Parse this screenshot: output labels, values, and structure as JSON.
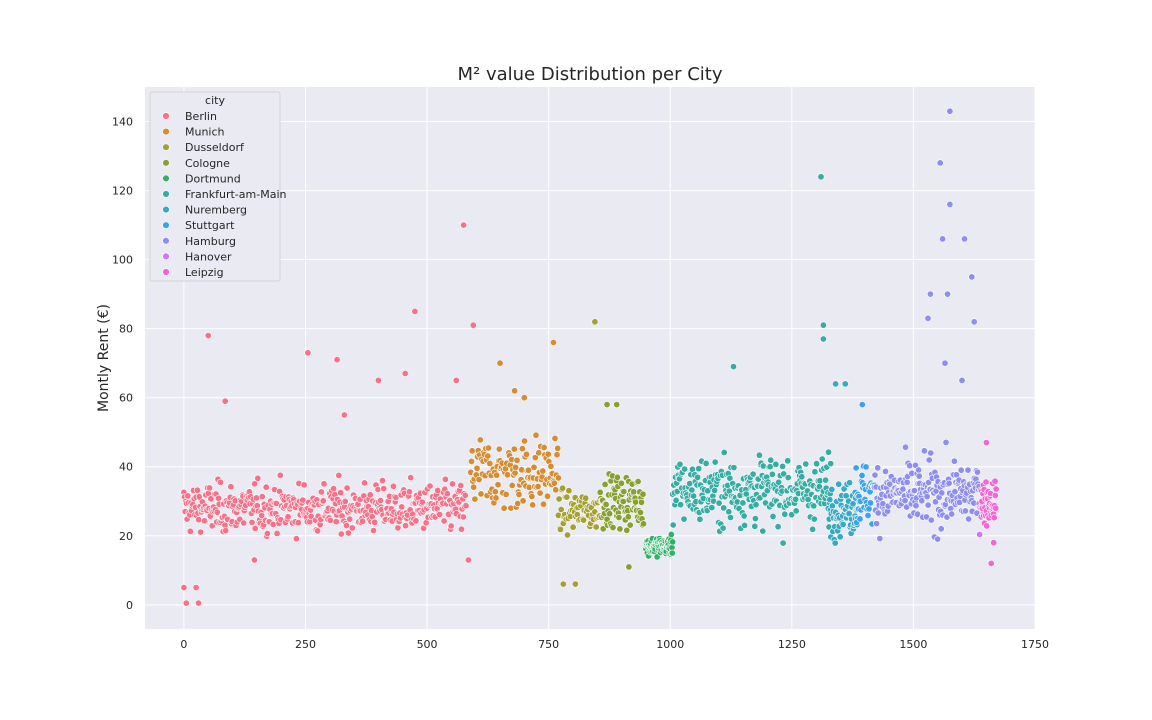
{
  "chart_data": {
    "type": "scatter",
    "title": "M² value Distribution per City",
    "xlabel": "",
    "ylabel": "Montly Rent (€)",
    "xlim": [
      -80,
      1750
    ],
    "ylim": [
      -7,
      150
    ],
    "xticks": [
      0,
      250,
      500,
      750,
      1000,
      1250,
      1500,
      1750
    ],
    "yticks": [
      0,
      20,
      40,
      60,
      80,
      100,
      120,
      140
    ],
    "grid": true,
    "legend": {
      "title": "city",
      "position": "top-left"
    },
    "series": [
      {
        "name": "Berlin",
        "color": "#f77189",
        "x_range": [
          0,
          580
        ],
        "center": 28,
        "spread": 6.5,
        "count": 440,
        "outliers": [
          [
            0,
            5
          ],
          [
            5,
            0.5
          ],
          [
            25,
            5
          ],
          [
            30,
            0.5
          ],
          [
            50,
            78
          ],
          [
            85,
            59
          ],
          [
            255,
            73
          ],
          [
            315,
            71
          ],
          [
            330,
            55
          ],
          [
            400,
            65
          ],
          [
            475,
            85
          ],
          [
            455,
            67
          ],
          [
            560,
            65
          ],
          [
            575,
            110
          ],
          [
            595,
            81
          ],
          [
            145,
            13
          ],
          [
            585,
            13
          ]
        ]
      },
      {
        "name": "Munich",
        "color": "#d58c32",
        "x_range": [
          590,
          770
        ],
        "center": 38,
        "spread": 10,
        "count": 130,
        "outliers": [
          [
            650,
            70
          ],
          [
            760,
            76
          ],
          [
            680,
            62
          ],
          [
            700,
            60
          ]
        ]
      },
      {
        "name": "Dusseldorf",
        "color": "#a4a031",
        "x_range": [
          770,
          855
        ],
        "center": 27,
        "spread": 5,
        "count": 60,
        "outliers": [
          [
            845,
            82
          ],
          [
            780,
            6
          ],
          [
            805,
            6
          ]
        ]
      },
      {
        "name": "Cologne",
        "color": "#88a030",
        "x_range": [
          855,
          945
        ],
        "center": 30,
        "spread": 7,
        "count": 90,
        "outliers": [
          [
            870,
            58
          ],
          [
            890,
            58
          ],
          [
            915,
            11
          ]
        ]
      },
      {
        "name": "Dortmund",
        "color": "#32b166",
        "x_range": [
          950,
          1005
        ],
        "center": 17,
        "spread": 2.5,
        "count": 80,
        "outliers": []
      },
      {
        "name": "Frankfurt-am-Main",
        "color": "#36ada4",
        "x_range": [
          1005,
          1330
        ],
        "center": 33,
        "spread": 9,
        "count": 280,
        "outliers": [
          [
            1310,
            124
          ],
          [
            1315,
            81
          ],
          [
            1315,
            77
          ],
          [
            1130,
            69
          ]
        ]
      },
      {
        "name": "Nuremberg",
        "color": "#38a9c5",
        "x_range": [
          1325,
          1385
        ],
        "center": 28,
        "spread": 7,
        "count": 60,
        "outliers": [
          [
            1340,
            64
          ],
          [
            1360,
            64
          ]
        ]
      },
      {
        "name": "Stuttgart",
        "color": "#3ba3ec",
        "x_range": [
          1380,
          1420
        ],
        "center": 32,
        "spread": 8,
        "count": 40,
        "outliers": [
          [
            1395,
            58
          ]
        ]
      },
      {
        "name": "Hamburg",
        "color": "#8e8ef0",
        "x_range": [
          1420,
          1635
        ],
        "center": 32,
        "spread": 9,
        "count": 200,
        "outliers": [
          [
            1575,
            143
          ],
          [
            1555,
            128
          ],
          [
            1575,
            116
          ],
          [
            1560,
            106
          ],
          [
            1605,
            106
          ],
          [
            1535,
            90
          ],
          [
            1570,
            90
          ],
          [
            1620,
            95
          ],
          [
            1625,
            82
          ],
          [
            1530,
            83
          ],
          [
            1565,
            70
          ],
          [
            1600,
            65
          ]
        ]
      },
      {
        "name": "Hanover",
        "color": "#cc7af4",
        "x_range": [
          1635,
          1645
        ],
        "center": 30,
        "spread": 6,
        "count": 10,
        "outliers": []
      },
      {
        "name": "Leipzig",
        "color": "#f564d4",
        "x_range": [
          1640,
          1670
        ],
        "center": 30,
        "spread": 6,
        "count": 40,
        "outliers": [
          [
            1650,
            47
          ],
          [
            1660,
            12
          ],
          [
            1665,
            18
          ]
        ]
      }
    ]
  }
}
